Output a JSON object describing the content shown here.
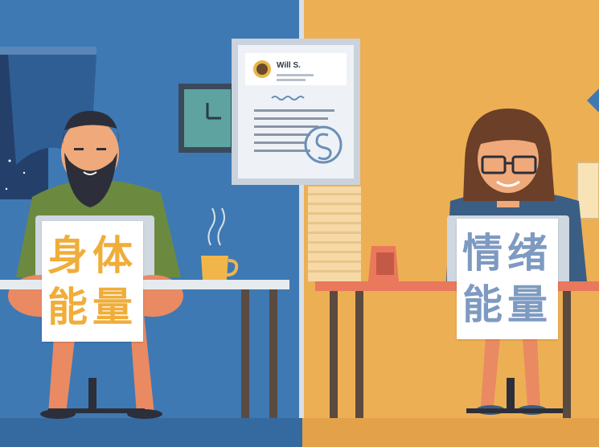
{
  "document": {
    "name": "Will S."
  },
  "left_sign": {
    "line1": "身体",
    "line2": "能量"
  },
  "right_sign": {
    "line1": "情绪",
    "line2": "能量"
  },
  "colors": {
    "left_bg": "#3e79b4",
    "right_bg": "#edaf54",
    "left_sign_text": "#f0ad3a",
    "right_sign_text": "#7e9ac1"
  }
}
